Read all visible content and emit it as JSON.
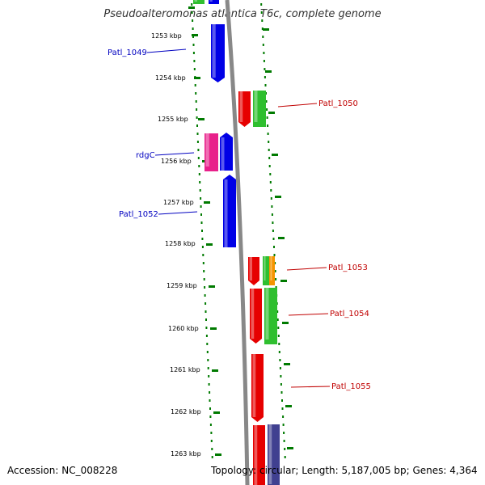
{
  "title": "Pseudoalteromonas atlantica T6c, complete genome",
  "accession": "Accession: NC_008228",
  "summary": "Topology: circular; Length: 5,187,005 bp; Genes: 4,364",
  "colors": {
    "blue": "#0000e6",
    "red": "#e60000",
    "green": "#2fbf2f",
    "magenta": "#e8208a",
    "orange": "#f59400",
    "navy": "#404090",
    "backbone": "#888888",
    "ticks": "#007a00",
    "label_blue": "#0000c0",
    "label_red": "#c00000"
  },
  "kbp_labels": [
    "1253 kbp",
    "1254 kbp",
    "1255 kbp",
    "1256 kbp",
    "1257 kbp",
    "1258 kbp",
    "1259 kbp",
    "1260 kbp",
    "1261 kbp",
    "1262 kbp",
    "1263 kbp"
  ],
  "gene_labels": [
    "Patl_1049",
    "Patl_1050",
    "rdgC",
    "Patl_1052",
    "Patl_1053",
    "Patl_1054",
    "Patl_1055"
  ]
}
